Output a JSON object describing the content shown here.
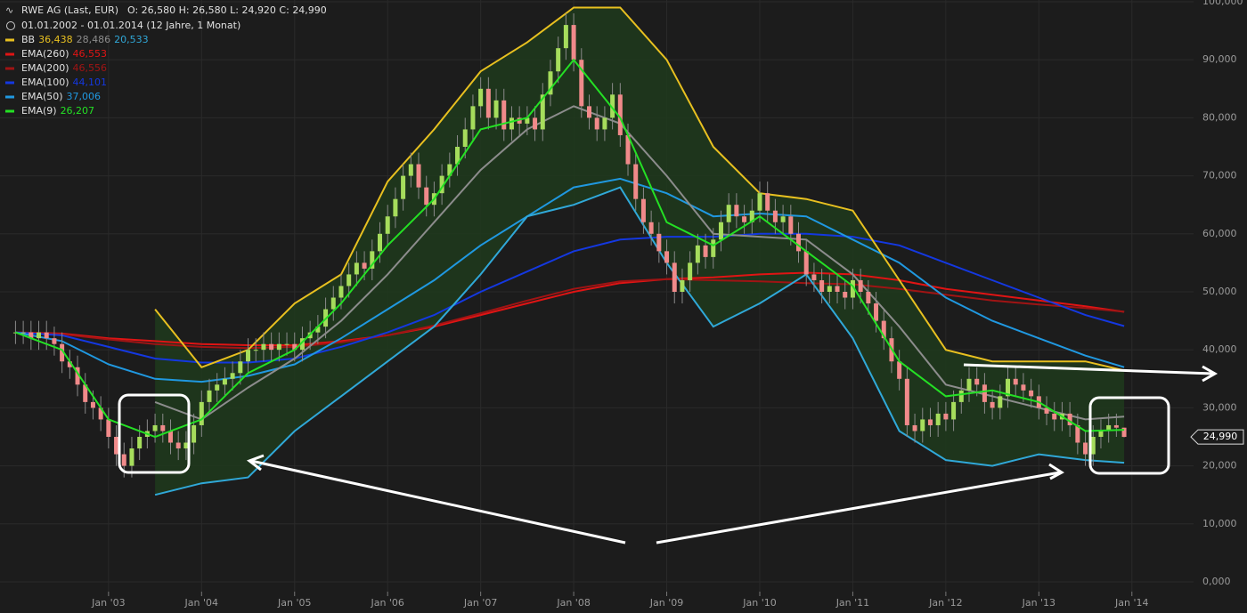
{
  "chart_data": {
    "type": "candlestick",
    "title": "RWE AG (Last, EUR)",
    "quote": "O: 26,580  H: 26,580  L: 24,920  C: 24,990",
    "subtitle": "01.01.2002 - 01.01.2014 (12 Jahre, 1 Monat)",
    "xlim": [
      "2001-11",
      "2014-07"
    ],
    "ylim": [
      0,
      100
    ],
    "yticks": [
      {
        "value": 0,
        "label": "0,000"
      },
      {
        "value": 10,
        "label": "10,000"
      },
      {
        "value": 20,
        "label": "20,000"
      },
      {
        "value": 30,
        "label": "30,000"
      },
      {
        "value": 40,
        "label": "40,000"
      },
      {
        "value": 50,
        "label": "50,000"
      },
      {
        "value": 60,
        "label": "60,000"
      },
      {
        "value": 70,
        "label": "70,000"
      },
      {
        "value": 80,
        "label": "80,000"
      },
      {
        "value": 90,
        "label": "90,000"
      },
      {
        "value": 100,
        "label": "100,000"
      }
    ],
    "xticks": [
      {
        "value": "2003-01",
        "label": "Jan '03"
      },
      {
        "value": "2004-01",
        "label": "Jan '04"
      },
      {
        "value": "2005-01",
        "label": "Jan '05"
      },
      {
        "value": "2006-01",
        "label": "Jan '06"
      },
      {
        "value": "2007-01",
        "label": "Jan '07"
      },
      {
        "value": "2008-01",
        "label": "Jan '08"
      },
      {
        "value": "2009-01",
        "label": "Jan '09"
      },
      {
        "value": "2010-01",
        "label": "Jan '10"
      },
      {
        "value": "2011-01",
        "label": "Jan '11"
      },
      {
        "value": "2012-01",
        "label": "Jan '12"
      },
      {
        "value": "2013-01",
        "label": "Jan '13"
      },
      {
        "value": "2014-01",
        "label": "Jan '14"
      }
    ],
    "grid": true,
    "up_color": "#a6dd5c",
    "down_color": "#f08a8a",
    "last_price": {
      "value": 24.99,
      "label": "24,990"
    },
    "candles": {
      "x": [
        "2002-01",
        "2002-02",
        "2002-03",
        "2002-04",
        "2002-05",
        "2002-06",
        "2002-07",
        "2002-08",
        "2002-09",
        "2002-10",
        "2002-11",
        "2002-12",
        "2003-01",
        "2003-02",
        "2003-03",
        "2003-04",
        "2003-05",
        "2003-06",
        "2003-07",
        "2003-08",
        "2003-09",
        "2003-10",
        "2003-11",
        "2003-12",
        "2004-01",
        "2004-02",
        "2004-03",
        "2004-04",
        "2004-05",
        "2004-06",
        "2004-07",
        "2004-08",
        "2004-09",
        "2004-10",
        "2004-11",
        "2004-12",
        "2005-01",
        "2005-02",
        "2005-03",
        "2005-04",
        "2005-05",
        "2005-06",
        "2005-07",
        "2005-08",
        "2005-09",
        "2005-10",
        "2005-11",
        "2005-12",
        "2006-01",
        "2006-02",
        "2006-03",
        "2006-04",
        "2006-05",
        "2006-06",
        "2006-07",
        "2006-08",
        "2006-09",
        "2006-10",
        "2006-11",
        "2006-12",
        "2007-01",
        "2007-02",
        "2007-03",
        "2007-04",
        "2007-05",
        "2007-06",
        "2007-07",
        "2007-08",
        "2007-09",
        "2007-10",
        "2007-11",
        "2007-12",
        "2008-01",
        "2008-02",
        "2008-03",
        "2008-04",
        "2008-05",
        "2008-06",
        "2008-07",
        "2008-08",
        "2008-09",
        "2008-10",
        "2008-11",
        "2008-12",
        "2009-01",
        "2009-02",
        "2009-03",
        "2009-04",
        "2009-05",
        "2009-06",
        "2009-07",
        "2009-08",
        "2009-09",
        "2009-10",
        "2009-11",
        "2009-12",
        "2010-01",
        "2010-02",
        "2010-03",
        "2010-04",
        "2010-05",
        "2010-06",
        "2010-07",
        "2010-08",
        "2010-09",
        "2010-10",
        "2010-11",
        "2010-12",
        "2011-01",
        "2011-02",
        "2011-03",
        "2011-04",
        "2011-05",
        "2011-06",
        "2011-07",
        "2011-08",
        "2011-09",
        "2011-10",
        "2011-11",
        "2011-12",
        "2012-01",
        "2012-02",
        "2012-03",
        "2012-04",
        "2012-05",
        "2012-06",
        "2012-07",
        "2012-08",
        "2012-09",
        "2012-10",
        "2012-11",
        "2012-12",
        "2013-01",
        "2013-02",
        "2013-03",
        "2013-04",
        "2013-05",
        "2013-06",
        "2013-07",
        "2013-08",
        "2013-09",
        "2013-10",
        "2013-11",
        "2013-12"
      ],
      "open": [
        43,
        43,
        43,
        42,
        43,
        42,
        41,
        38,
        37,
        34,
        31,
        30,
        28,
        25,
        22,
        20,
        23,
        25,
        26,
        27,
        26,
        24,
        23,
        24,
        27,
        31,
        33,
        34,
        35,
        36,
        38,
        40,
        40,
        41,
        40,
        41,
        41,
        40,
        42,
        43,
        44,
        47,
        49,
        51,
        53,
        55,
        54,
        57,
        60,
        63,
        66,
        70,
        72,
        68,
        65,
        67,
        70,
        72,
        75,
        78,
        82,
        85,
        80,
        83,
        78,
        80,
        79,
        80,
        78,
        84,
        88,
        92,
        96,
        90,
        82,
        80,
        78,
        80,
        84,
        77,
        72,
        66,
        62,
        60,
        57,
        55,
        50,
        52,
        55,
        58,
        56,
        59,
        62,
        65,
        63,
        62,
        64,
        67,
        64,
        62,
        63,
        60,
        57,
        53,
        52,
        50,
        51,
        50,
        49,
        52,
        50,
        48,
        45,
        42,
        38,
        35,
        27,
        26,
        28,
        27,
        29,
        28,
        31,
        33,
        35,
        34,
        31,
        30,
        32,
        35,
        34,
        33,
        32,
        30,
        29,
        28,
        29,
        27,
        24,
        22,
        25,
        26,
        27,
        26.58
      ],
      "high": [
        45,
        45,
        45,
        45,
        45,
        44,
        43,
        40,
        39,
        36,
        33,
        32,
        30,
        27,
        24,
        25,
        27,
        28,
        29,
        29,
        28,
        26,
        26,
        29,
        33,
        35,
        36,
        37,
        38,
        40,
        42,
        42,
        43,
        43,
        43,
        43,
        43,
        44,
        45,
        46,
        49,
        51,
        53,
        55,
        57,
        57,
        59,
        62,
        65,
        68,
        72,
        74,
        74,
        70,
        69,
        72,
        74,
        77,
        80,
        84,
        87,
        87,
        85,
        85,
        82,
        82,
        82,
        82,
        86,
        90,
        94,
        98,
        98,
        92,
        84,
        82,
        82,
        86,
        86,
        79,
        74,
        68,
        64,
        62,
        59,
        57,
        54,
        57,
        60,
        60,
        61,
        64,
        67,
        67,
        65,
        66,
        69,
        69,
        66,
        65,
        65,
        62,
        59,
        55,
        54,
        53,
        53,
        52,
        54,
        54,
        52,
        50,
        47,
        44,
        40,
        37,
        29,
        30,
        30,
        31,
        31,
        33,
        35,
        37,
        37,
        36,
        33,
        34,
        37,
        37,
        36,
        35,
        34,
        32,
        31,
        31,
        31,
        29,
        26,
        27,
        28,
        29,
        29,
        26.58
      ],
      "low": [
        41,
        41,
        40,
        40,
        40,
        39,
        36,
        35,
        32,
        29,
        28,
        26,
        23,
        20,
        18,
        18,
        21,
        23,
        24,
        24,
        22,
        21,
        21,
        22,
        25,
        29,
        31,
        32,
        33,
        34,
        36,
        38,
        38,
        38,
        38,
        39,
        38,
        38,
        40,
        41,
        42,
        45,
        47,
        49,
        51,
        52,
        52,
        55,
        58,
        61,
        64,
        68,
        66,
        63,
        63,
        65,
        68,
        70,
        73,
        76,
        80,
        78,
        78,
        76,
        76,
        77,
        77,
        76,
        76,
        82,
        86,
        90,
        88,
        80,
        78,
        76,
        76,
        78,
        75,
        70,
        64,
        60,
        58,
        55,
        53,
        48,
        48,
        50,
        53,
        54,
        54,
        57,
        60,
        61,
        60,
        60,
        62,
        62,
        60,
        60,
        58,
        55,
        51,
        50,
        48,
        48,
        48,
        47,
        47,
        48,
        46,
        43,
        40,
        36,
        33,
        25,
        24,
        24,
        25,
        25,
        26,
        26,
        29,
        31,
        32,
        29,
        28,
        28,
        30,
        32,
        31,
        30,
        28,
        27,
        26,
        26,
        25,
        22,
        20,
        20,
        23,
        24,
        25,
        24.92
      ],
      "close": [
        43,
        43,
        42,
        43,
        42,
        41,
        38,
        37,
        34,
        31,
        30,
        28,
        25,
        22,
        20,
        23,
        25,
        26,
        27,
        26,
        24,
        23,
        24,
        27,
        31,
        33,
        34,
        35,
        36,
        38,
        40,
        40,
        41,
        40,
        41,
        41,
        40,
        42,
        43,
        44,
        47,
        49,
        51,
        53,
        55,
        54,
        57,
        60,
        63,
        66,
        70,
        72,
        68,
        65,
        67,
        70,
        72,
        75,
        78,
        82,
        85,
        80,
        83,
        78,
        80,
        79,
        80,
        78,
        84,
        88,
        92,
        96,
        90,
        82,
        80,
        78,
        80,
        84,
        77,
        72,
        66,
        62,
        60,
        57,
        55,
        50,
        52,
        55,
        58,
        56,
        59,
        62,
        65,
        63,
        62,
        64,
        67,
        64,
        62,
        63,
        60,
        57,
        53,
        52,
        50,
        51,
        50,
        49,
        52,
        50,
        48,
        45,
        42,
        38,
        35,
        27,
        26,
        28,
        27,
        29,
        28,
        31,
        33,
        35,
        34,
        31,
        30,
        32,
        35,
        34,
        33,
        32,
        30,
        29,
        28,
        29,
        27,
        24,
        22,
        25,
        26,
        27,
        26.58,
        24.99
      ]
    },
    "lines": {
      "x": [
        "2002-01",
        "2002-07",
        "2003-01",
        "2003-07",
        "2004-01",
        "2004-07",
        "2005-01",
        "2005-07",
        "2006-01",
        "2006-07",
        "2007-01",
        "2007-07",
        "2008-01",
        "2008-07",
        "2009-01",
        "2009-07",
        "2010-01",
        "2010-07",
        "2011-01",
        "2011-07",
        "2012-01",
        "2012-07",
        "2013-01",
        "2013-07",
        "2013-12"
      ],
      "band": {
        "name": "BB",
        "color": "#e8c020",
        "colors": [
          "#e8c020",
          "#8c8c8c",
          "#30a8d8"
        ],
        "fill": "#1f3a1c",
        "upper": [
          null,
          null,
          null,
          47,
          37,
          40,
          48,
          53,
          69,
          78,
          88,
          93,
          99,
          99,
          90,
          75,
          67,
          66,
          64,
          52,
          40,
          38,
          38,
          38,
          36.44
        ],
        "middle": [
          null,
          null,
          null,
          31,
          28,
          33.5,
          38.5,
          45,
          53,
          62,
          71,
          78,
          82,
          79,
          70,
          60,
          59.5,
          59,
          53,
          44,
          34,
          32,
          30,
          28,
          28.49
        ],
        "lower": [
          null,
          null,
          null,
          15,
          17,
          18,
          26,
          32,
          38,
          44,
          53,
          63,
          65,
          68,
          55,
          44,
          48,
          53,
          42,
          26,
          21,
          20,
          22,
          21,
          20.53
        ],
        "legend_values": [
          {
            "value": 36.438,
            "label": "36,438"
          },
          {
            "value": 28.486,
            "label": "28,486"
          },
          {
            "value": 20.533,
            "label": "20,533"
          }
        ]
      },
      "series": [
        {
          "name": "EMA(260)",
          "color": "#e01414",
          "legend_value": {
            "value": 46.553,
            "label": "46,553"
          },
          "values": [
            43,
            42.8,
            42,
            41.5,
            41,
            40.8,
            40.8,
            41.5,
            42.5,
            44,
            46,
            48,
            50,
            51.5,
            52.2,
            52.5,
            53,
            53.3,
            53,
            52,
            50.5,
            49.5,
            48.5,
            47.5,
            46.55
          ]
        },
        {
          "name": "EMA(200)",
          "color": "#a01414",
          "legend_value": {
            "value": 46.556,
            "label": "46,556"
          },
          "values": [
            43,
            42.7,
            41.8,
            41,
            40.5,
            40.3,
            40.5,
            41.3,
            42.5,
            44.2,
            46.3,
            48.5,
            50.5,
            51.8,
            52.2,
            52,
            51.8,
            51.5,
            51.3,
            50.5,
            49.5,
            48.5,
            47.8,
            47.2,
            46.56
          ]
        },
        {
          "name": "EMA(100)",
          "color": "#1438e0",
          "legend_value": {
            "value": 44.101,
            "label": "44,101"
          },
          "values": [
            43,
            42.5,
            40.5,
            38.5,
            37.8,
            37.8,
            38.5,
            40.5,
            43,
            46,
            50,
            53.5,
            57,
            59,
            59.5,
            59.5,
            60,
            60,
            59.5,
            58,
            55,
            52,
            49,
            46,
            44.1
          ]
        },
        {
          "name": "EMA(50)",
          "color": "#2098e0",
          "legend_value": {
            "value": 37.006,
            "label": "37,006"
          },
          "values": [
            43,
            41.5,
            37.5,
            35,
            34.5,
            35.5,
            37.5,
            42,
            47,
            52,
            58,
            63,
            68,
            69.5,
            67,
            63,
            63.5,
            63,
            59,
            55,
            49,
            45,
            42,
            39,
            37.01
          ]
        },
        {
          "name": "EMA(9)",
          "color": "#24e024",
          "legend_value": {
            "value": 26.207,
            "label": "26,207"
          },
          "values": [
            43,
            40,
            28,
            25,
            28,
            36,
            40,
            48,
            58,
            66,
            78,
            80,
            90,
            80,
            62,
            58,
            63,
            57,
            51,
            38,
            32,
            33,
            31,
            26,
            26.21
          ]
        }
      ]
    }
  }
}
